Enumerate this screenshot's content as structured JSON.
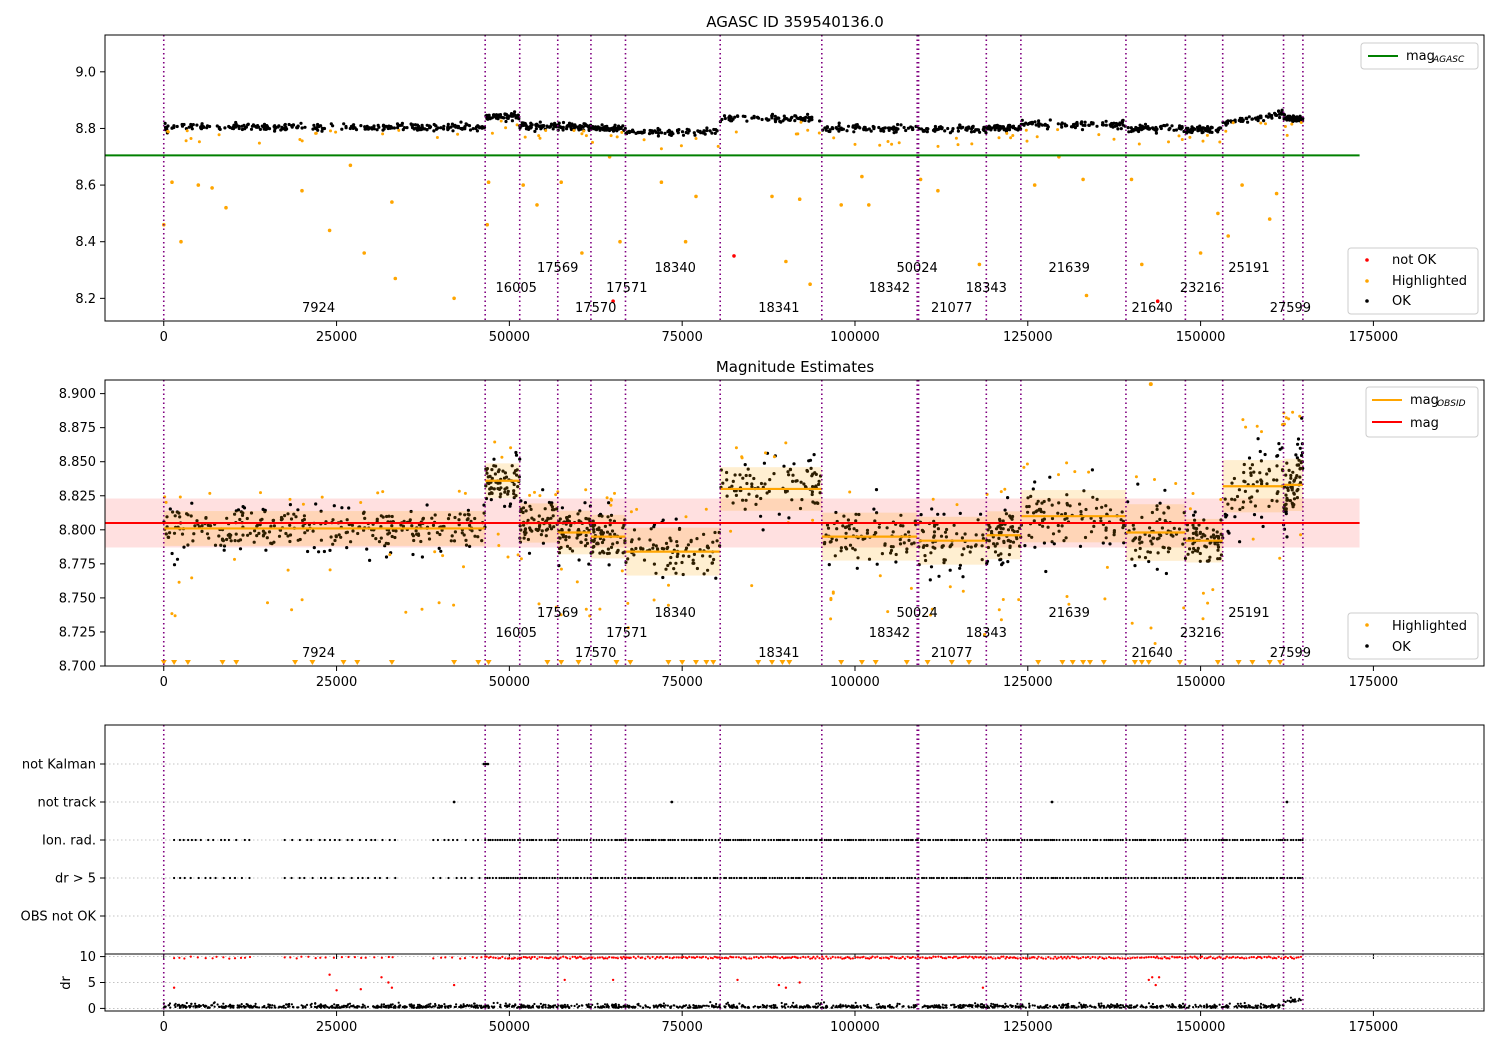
{
  "obsid_labels": [
    {
      "x": 20000,
      "text": "7924",
      "row": 0
    },
    {
      "x": 48000,
      "text": "16005",
      "row": 1
    },
    {
      "x": 54000,
      "text": "17569",
      "row": 2
    },
    {
      "x": 59500,
      "text": "17570",
      "row": 0
    },
    {
      "x": 64000,
      "text": "17571",
      "row": 1
    },
    {
      "x": 71000,
      "text": "18340",
      "row": 2
    },
    {
      "x": 86000,
      "text": "18341",
      "row": 0
    },
    {
      "x": 102000,
      "text": "18342",
      "row": 1
    },
    {
      "x": 106000,
      "text": "50024",
      "row": 2
    },
    {
      "x": 111000,
      "text": "21077",
      "row": 0
    },
    {
      "x": 116000,
      "text": "18343",
      "row": 1
    },
    {
      "x": 128000,
      "text": "21639",
      "row": 2
    },
    {
      "x": 140000,
      "text": "21640",
      "row": 0
    },
    {
      "x": 147000,
      "text": "23216",
      "row": 1
    },
    {
      "x": 154000,
      "text": "25191",
      "row": 2
    },
    {
      "x": 160000,
      "text": "27599",
      "row": 0
    }
  ],
  "chart_data": [
    {
      "type": "scatter",
      "title": "AGASC ID 359540136.0",
      "xlim": [
        -8500,
        191000
      ],
      "ylim": [
        8.12,
        9.13
      ],
      "xticks": [
        0,
        25000,
        50000,
        75000,
        100000,
        125000,
        150000,
        175000
      ],
      "xtick_labels": [
        "0",
        "25000",
        "50000",
        "75000",
        "100000",
        "125000",
        "150000",
        "175000"
      ],
      "yticks": [
        8.2,
        8.4,
        8.6,
        8.8,
        9.0
      ],
      "ytick_labels": [
        "8.2",
        "8.4",
        "8.6",
        "8.8",
        "9.0"
      ],
      "obsid_boundaries": [
        0,
        46500,
        51500,
        57000,
        61800,
        66800,
        80500,
        95200,
        109000,
        109200,
        119000,
        124000,
        139200,
        147800,
        153200,
        162000,
        164800
      ],
      "segments": [
        {
          "x0": 0,
          "x1": 46500,
          "mean": 8.805
        },
        {
          "x0": 46500,
          "x1": 51500,
          "mean": 8.842
        },
        {
          "x0": 51500,
          "x1": 57000,
          "mean": 8.81
        },
        {
          "x0": 57000,
          "x1": 61800,
          "mean": 8.805
        },
        {
          "x0": 61800,
          "x1": 66800,
          "mean": 8.8
        },
        {
          "x0": 66800,
          "x1": 80500,
          "mean": 8.787
        },
        {
          "x0": 80500,
          "x1": 95200,
          "mean": 8.835
        },
        {
          "x0": 95200,
          "x1": 109000,
          "mean": 8.8
        },
        {
          "x0": 109200,
          "x1": 119000,
          "mean": 8.797
        },
        {
          "x0": 119000,
          "x1": 124000,
          "mean": 8.803
        },
        {
          "x0": 124000,
          "x1": 139200,
          "mean": 8.816
        },
        {
          "x0": 139200,
          "x1": 147800,
          "mean": 8.8
        },
        {
          "x0": 147800,
          "x1": 153200,
          "mean": 8.795
        },
        {
          "x0": 153200,
          "x1": 162000,
          "mean": 8.835
        },
        {
          "x0": 162000,
          "x1": 164800,
          "mean": 8.835
        }
      ],
      "mag_agasc": 8.705,
      "line_extent": [
        0,
        173000
      ],
      "highlighted_points": [
        [
          0,
          8.46
        ],
        [
          1200,
          8.61
        ],
        [
          2500,
          8.4
        ],
        [
          5000,
          8.6
        ],
        [
          7000,
          8.59
        ],
        [
          9000,
          8.52
        ],
        [
          20000,
          8.58
        ],
        [
          24000,
          8.44
        ],
        [
          27000,
          8.67
        ],
        [
          29000,
          8.36
        ],
        [
          33000,
          8.54
        ],
        [
          33500,
          8.27
        ],
        [
          42000,
          8.2
        ],
        [
          46800,
          8.46
        ],
        [
          47000,
          8.61
        ],
        [
          52000,
          8.6
        ],
        [
          54000,
          8.53
        ],
        [
          57500,
          8.61
        ],
        [
          60500,
          8.36
        ],
        [
          64500,
          8.7
        ],
        [
          66000,
          8.4
        ],
        [
          72000,
          8.61
        ],
        [
          75500,
          8.4
        ],
        [
          77000,
          8.56
        ],
        [
          88000,
          8.56
        ],
        [
          90000,
          8.33
        ],
        [
          92000,
          8.55
        ],
        [
          93500,
          8.25
        ],
        [
          98000,
          8.53
        ],
        [
          101000,
          8.63
        ],
        [
          102000,
          8.53
        ],
        [
          109500,
          8.62
        ],
        [
          112000,
          8.58
        ],
        [
          118000,
          8.32
        ],
        [
          126000,
          8.6
        ],
        [
          129500,
          8.7
        ],
        [
          133000,
          8.62
        ],
        [
          133500,
          8.21
        ],
        [
          140000,
          8.62
        ],
        [
          141500,
          8.32
        ],
        [
          150000,
          8.36
        ],
        [
          152500,
          8.5
        ],
        [
          154000,
          8.42
        ],
        [
          156000,
          8.6
        ],
        [
          160000,
          8.48
        ],
        [
          161000,
          8.57
        ]
      ],
      "not_ok_points": [
        [
          65000,
          8.19
        ],
        [
          82500,
          8.35
        ],
        [
          143800,
          8.19
        ]
      ],
      "legend_top": [
        {
          "label": "mag",
          "sub": "AGASC",
          "color": "#008000"
        }
      ],
      "legend_bottom": [
        {
          "label": "not OK",
          "color": "#ff0000"
        },
        {
          "label": "Highlighted",
          "color": "#ffa500"
        },
        {
          "label": "OK",
          "color": "#000000"
        }
      ]
    },
    {
      "type": "scatter",
      "title": "Magnitude Estimates",
      "xlim": [
        -8500,
        191000
      ],
      "ylim": [
        8.7,
        8.91
      ],
      "xticks": [
        0,
        25000,
        50000,
        75000,
        100000,
        125000,
        150000,
        175000
      ],
      "xtick_labels": [
        "0",
        "25000",
        "50000",
        "75000",
        "100000",
        "125000",
        "150000",
        "175000"
      ],
      "yticks": [
        8.7,
        8.725,
        8.75,
        8.775,
        8.8,
        8.825,
        8.85,
        8.875,
        8.9
      ],
      "ytick_labels": [
        "8.700",
        "8.725",
        "8.750",
        "8.775",
        "8.800",
        "8.825",
        "8.850",
        "8.875",
        "8.900"
      ],
      "mag": 8.805,
      "mag_band": [
        8.787,
        8.823
      ],
      "segments": [
        {
          "x0": 0,
          "x1": 46500,
          "mean": 8.801,
          "lo": 8.785,
          "hi": 8.818,
          "s": 0.008
        },
        {
          "x0": 46500,
          "x1": 51500,
          "mean": 8.836,
          "lo": 8.818,
          "hi": 8.853,
          "s": 0.008
        },
        {
          "x0": 51500,
          "x1": 57000,
          "mean": 8.805,
          "lo": 8.785,
          "hi": 8.825,
          "s": 0.009
        },
        {
          "x0": 57000,
          "x1": 61800,
          "mean": 8.798,
          "lo": 8.775,
          "hi": 8.82,
          "s": 0.01
        },
        {
          "x0": 61800,
          "x1": 66800,
          "mean": 8.795,
          "lo": 8.772,
          "hi": 8.818,
          "s": 0.01
        },
        {
          "x0": 66800,
          "x1": 80500,
          "mean": 8.784,
          "lo": 8.76,
          "hi": 8.808,
          "s": 0.011
        },
        {
          "x0": 80500,
          "x1": 95200,
          "mean": 8.83,
          "lo": 8.808,
          "hi": 8.852,
          "s": 0.01
        },
        {
          "x0": 95200,
          "x1": 109000,
          "mean": 8.795,
          "lo": 8.77,
          "hi": 8.82,
          "s": 0.011
        },
        {
          "x0": 109200,
          "x1": 119000,
          "mean": 8.792,
          "lo": 8.766,
          "hi": 8.818,
          "s": 0.011
        },
        {
          "x0": 119000,
          "x1": 124000,
          "mean": 8.796,
          "lo": 8.772,
          "hi": 8.82,
          "s": 0.011
        },
        {
          "x0": 124000,
          "x1": 139200,
          "mean": 8.81,
          "lo": 8.784,
          "hi": 8.838,
          "s": 0.012
        },
        {
          "x0": 139200,
          "x1": 147800,
          "mean": 8.798,
          "lo": 8.765,
          "hi": 8.83,
          "s": 0.013
        },
        {
          "x0": 147800,
          "x1": 153200,
          "mean": 8.792,
          "lo": 8.77,
          "hi": 8.815,
          "s": 0.01
        },
        {
          "x0": 153200,
          "x1": 162000,
          "mean": 8.832,
          "lo": 8.805,
          "hi": 8.87,
          "s": 0.012
        },
        {
          "x0": 162000,
          "x1": 164800,
          "mean": 8.833,
          "lo": 8.805,
          "hi": 8.875,
          "s": 0.012
        }
      ],
      "legend_top": [
        {
          "label": "mag",
          "sub": "OBSID",
          "color": "#ffa500"
        },
        {
          "label": "mag",
          "sub": "",
          "color": "#ff0000"
        }
      ],
      "legend_bottom": [
        {
          "label": "Highlighted",
          "color": "#ffa500"
        },
        {
          "label": "OK",
          "color": "#000000"
        }
      ]
    },
    {
      "type": "scatter",
      "xlim": [
        -8500,
        191000
      ],
      "categories": [
        "not Kalman",
        "not track",
        "Ion. rad.",
        "dr > 5",
        "OBS not OK"
      ],
      "not_kalman_points": [
        [
          46300,
          0
        ],
        [
          46600,
          0
        ],
        [
          46900,
          0
        ]
      ],
      "not_track_points": [
        [
          42000,
          0
        ],
        [
          73500,
          0
        ],
        [
          128500,
          0
        ],
        [
          162500,
          0
        ]
      ],
      "flag_x_ranges": [
        [
          1500,
          12500
        ],
        [
          17500,
          33500
        ],
        [
          39000,
          46000
        ],
        [
          46500,
          164800
        ]
      ]
    },
    {
      "type": "scatter",
      "ylabel": "dr",
      "xlim": [
        -8500,
        191000
      ],
      "ylim": [
        -0.5,
        10.5
      ],
      "xticks": [
        0,
        25000,
        50000,
        75000,
        100000,
        125000,
        150000,
        175000
      ],
      "xtick_labels": [
        "0",
        "25000",
        "50000",
        "75000",
        "100000",
        "125000",
        "150000",
        "175000"
      ],
      "yticks": [
        0,
        5,
        10
      ],
      "ytick_labels": [
        "0",
        "5",
        "10"
      ],
      "outliers": [
        [
          1500,
          4
        ],
        [
          24000,
          6.5
        ],
        [
          25000,
          3.5
        ],
        [
          28500,
          3.7
        ],
        [
          31500,
          6
        ],
        [
          32500,
          5
        ],
        [
          33000,
          4
        ],
        [
          42000,
          4.5
        ],
        [
          58000,
          5.5
        ],
        [
          65000,
          5.5
        ],
        [
          83000,
          5.5
        ],
        [
          89000,
          4.5
        ],
        [
          90000,
          4
        ],
        [
          92000,
          5
        ],
        [
          118500,
          4
        ],
        [
          142500,
          5.5
        ],
        [
          143000,
          6
        ],
        [
          144000,
          6
        ],
        [
          143500,
          4.5
        ]
      ]
    }
  ]
}
